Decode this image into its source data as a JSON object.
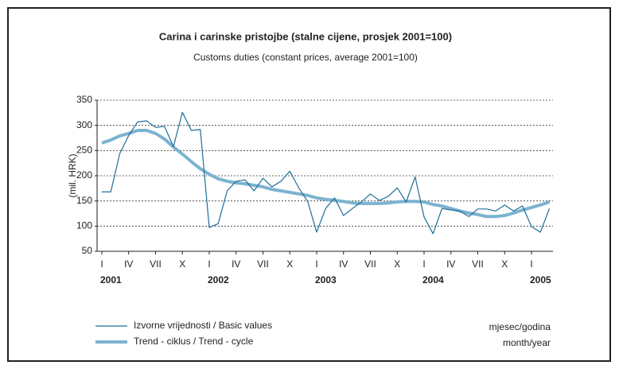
{
  "chart_data": {
    "type": "line",
    "title": "Carina i carinske pristojbe (stalne cijene, prosjek 2001=100)",
    "subtitle": "Customs duties (constant prices, average 2001=100)",
    "y_label": "(mil. HRK)",
    "x_label": [
      "mjesec/godina",
      "month/year"
    ],
    "categories": [
      "I",
      null,
      null,
      "IV",
      null,
      null,
      "VII",
      null,
      null,
      "X",
      null,
      null,
      "I",
      null,
      null,
      "IV",
      null,
      null,
      "VII",
      null,
      null,
      "X",
      null,
      null,
      "I",
      null,
      null,
      "IV",
      null,
      null,
      "VII",
      null,
      null,
      "X",
      null,
      null,
      "I",
      null,
      null,
      "IV",
      null,
      null,
      "VII",
      null,
      null,
      "X",
      null,
      null,
      "I",
      null,
      null
    ],
    "year_labels": [
      "2001",
      null,
      null,
      null,
      null,
      null,
      null,
      null,
      null,
      null,
      null,
      null,
      "2002",
      null,
      null,
      null,
      null,
      null,
      null,
      null,
      null,
      null,
      null,
      null,
      "2003",
      null,
      null,
      null,
      null,
      null,
      null,
      null,
      null,
      null,
      null,
      null,
      "2004",
      null,
      null,
      null,
      null,
      null,
      null,
      null,
      null,
      null,
      null,
      null,
      "2005",
      null,
      null
    ],
    "series": [
      {
        "name": "Izvorne vrijednosti / Basic values",
        "color": "#1f6e9a",
        "values": [
          168,
          168,
          244,
          280,
          307,
          309,
          296,
          298,
          258,
          326,
          290,
          292,
          97,
          105,
          170,
          189,
          192,
          170,
          195,
          178,
          189,
          209,
          176,
          149,
          88,
          135,
          156,
          121,
          135,
          148,
          164,
          151,
          159,
          176,
          148,
          198,
          118,
          85,
          135,
          132,
          130,
          119,
          134,
          134,
          130,
          142,
          130,
          140,
          99,
          88,
          135
        ]
      },
      {
        "name": "Trend - ciklus / Trend - cycle",
        "color": "#7bb3cf",
        "values": [
          265,
          271,
          279,
          284,
          290,
          290,
          284,
          273,
          257,
          243,
          228,
          214,
          203,
          194,
          189,
          186,
          184,
          181,
          178,
          173,
          170,
          167,
          164,
          161,
          156,
          153,
          151,
          149,
          146,
          145,
          145,
          145,
          146,
          148,
          149,
          149,
          148,
          143,
          140,
          135,
          130,
          126,
          123,
          119,
          119,
          121,
          126,
          132,
          137,
          142,
          148
        ]
      }
    ],
    "ylim": [
      50,
      350
    ],
    "yticks": [
      50,
      100,
      150,
      200,
      250,
      300,
      350
    ],
    "grid": true
  }
}
